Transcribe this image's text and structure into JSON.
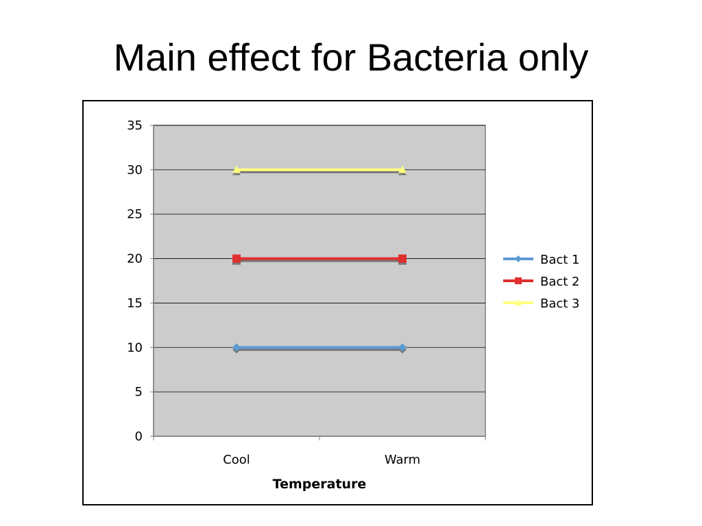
{
  "slide": {
    "title": "Main effect for Bacteria only"
  },
  "chart_data": {
    "type": "line",
    "title": "",
    "xlabel": "Temperature",
    "ylabel": "",
    "categories": [
      "Cool",
      "Warm"
    ],
    "ylim": [
      0,
      35
    ],
    "yticks": [
      0,
      5,
      10,
      15,
      20,
      25,
      30,
      35
    ],
    "grid": true,
    "legend_position": "right",
    "plot_background": "#cccccc",
    "series": [
      {
        "name": "Bact 1",
        "values": [
          10,
          10
        ],
        "color": "#5b9bd5",
        "marker": "diamond"
      },
      {
        "name": "Bact 2",
        "values": [
          20,
          20
        ],
        "color": "#e03030",
        "marker": "square"
      },
      {
        "name": "Bact 3",
        "values": [
          30,
          30
        ],
        "color": "#ffff80",
        "marker": "triangle"
      }
    ]
  }
}
